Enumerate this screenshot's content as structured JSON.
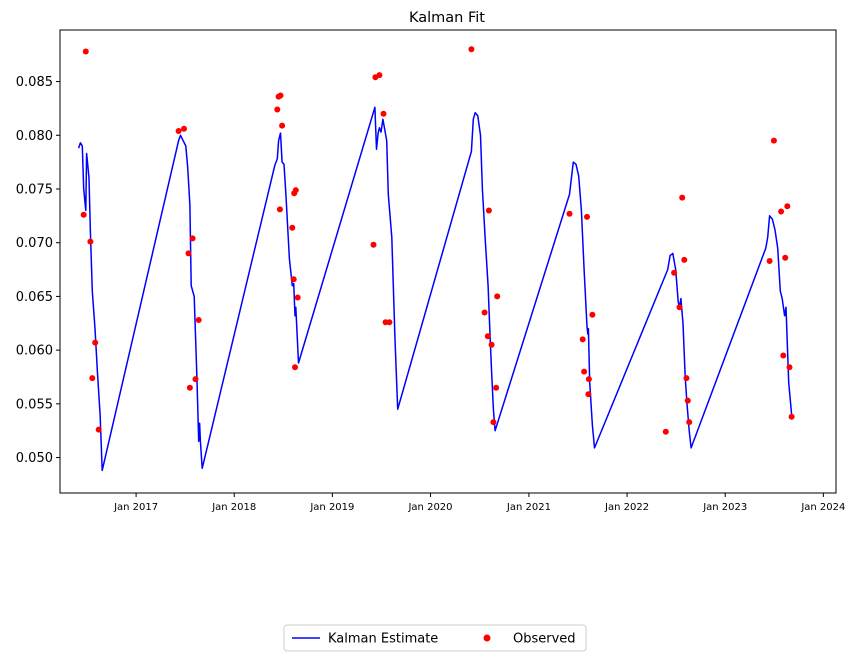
{
  "chart_data": {
    "type": "line",
    "title": "Kalman Fit",
    "xlabel": "",
    "ylabel": "",
    "xlim": [
      "2016-03-24",
      "2024-02-17"
    ],
    "ylim": [
      0.0467,
      0.0898
    ],
    "grid": false,
    "legend_position": "bottom-center",
    "colors": {
      "estimate": "#0000ff",
      "observed": "#ff0000"
    },
    "x_ticks": [
      "Jan 2017",
      "Jan 2018",
      "Jan 2019",
      "Jan 2020",
      "Jan 2021",
      "Jan 2022",
      "Jan 2023",
      "Jan 2024"
    ],
    "x_tick_dates": [
      "2017-01-01",
      "2018-01-01",
      "2019-01-01",
      "2020-01-01",
      "2021-01-01",
      "2022-01-01",
      "2023-01-01",
      "2024-01-01"
    ],
    "y_ticks": [
      "0.050",
      "0.055",
      "0.060",
      "0.065",
      "0.070",
      "0.075",
      "0.080",
      "0.085"
    ],
    "y_tick_values": [
      0.05,
      0.055,
      0.06,
      0.065,
      0.07,
      0.075,
      0.08,
      0.085
    ],
    "series": [
      {
        "name": "Kalman Estimate",
        "kind": "line",
        "points": [
          [
            "2016-06-01",
            0.0788
          ],
          [
            "2016-06-08",
            0.0793
          ],
          [
            "2016-06-15",
            0.079
          ],
          [
            "2016-06-20",
            0.075
          ],
          [
            "2016-06-28",
            0.073
          ],
          [
            "2016-07-01",
            0.0783
          ],
          [
            "2016-07-05",
            0.0773
          ],
          [
            "2016-07-10",
            0.076
          ],
          [
            "2016-07-15",
            0.071
          ],
          [
            "2016-07-22",
            0.0655
          ],
          [
            "2016-08-01",
            0.062
          ],
          [
            "2016-08-10",
            0.058
          ],
          [
            "2016-08-20",
            0.054
          ],
          [
            "2016-08-28",
            0.0488
          ],
          [
            "2017-06-08",
            0.0795
          ],
          [
            "2017-06-15",
            0.08
          ],
          [
            "2017-06-25",
            0.0795
          ],
          [
            "2017-07-05",
            0.079
          ],
          [
            "2017-07-12",
            0.077
          ],
          [
            "2017-07-20",
            0.0735
          ],
          [
            "2017-07-25",
            0.066
          ],
          [
            "2017-08-05",
            0.065
          ],
          [
            "2017-08-15",
            0.0575
          ],
          [
            "2017-08-22",
            0.0515
          ],
          [
            "2017-08-25",
            0.0532
          ],
          [
            "2017-08-28",
            0.0515
          ],
          [
            "2017-09-04",
            0.049
          ],
          [
            "2018-06-01",
            0.0772
          ],
          [
            "2018-06-10",
            0.0778
          ],
          [
            "2018-06-15",
            0.0795
          ],
          [
            "2018-06-22",
            0.0802
          ],
          [
            "2018-06-28",
            0.0775
          ],
          [
            "2018-07-05",
            0.0773
          ],
          [
            "2018-07-12",
            0.0745
          ],
          [
            "2018-07-25",
            0.0685
          ],
          [
            "2018-08-05",
            0.066
          ],
          [
            "2018-08-10",
            0.0662
          ],
          [
            "2018-08-15",
            0.0632
          ],
          [
            "2018-08-18",
            0.064
          ],
          [
            "2018-08-28",
            0.0588
          ],
          [
            "2019-06-08",
            0.0826
          ],
          [
            "2019-06-14",
            0.0787
          ],
          [
            "2019-06-20",
            0.0802
          ],
          [
            "2019-06-25",
            0.0807
          ],
          [
            "2019-07-01",
            0.0803
          ],
          [
            "2019-07-08",
            0.0815
          ],
          [
            "2019-07-15",
            0.0805
          ],
          [
            "2019-07-22",
            0.0795
          ],
          [
            "2019-07-28",
            0.0745
          ],
          [
            "2019-08-10",
            0.0705
          ],
          [
            "2019-08-22",
            0.061
          ],
          [
            "2019-09-01",
            0.0545
          ],
          [
            "2020-06-01",
            0.0785
          ],
          [
            "2020-06-08",
            0.0815
          ],
          [
            "2020-06-15",
            0.0821
          ],
          [
            "2020-06-25",
            0.0818
          ],
          [
            "2020-07-05",
            0.08
          ],
          [
            "2020-07-12",
            0.075
          ],
          [
            "2020-07-22",
            0.0705
          ],
          [
            "2020-08-02",
            0.066
          ],
          [
            "2020-08-10",
            0.061
          ],
          [
            "2020-08-15",
            0.058
          ],
          [
            "2020-08-22",
            0.0545
          ],
          [
            "2020-08-28",
            0.0525
          ],
          [
            "2021-06-01",
            0.0745
          ],
          [
            "2021-06-15",
            0.0775
          ],
          [
            "2021-06-25",
            0.0773
          ],
          [
            "2021-07-05",
            0.0762
          ],
          [
            "2021-07-15",
            0.073
          ],
          [
            "2021-07-25",
            0.0675
          ],
          [
            "2021-08-05",
            0.0622
          ],
          [
            "2021-08-08",
            0.0615
          ],
          [
            "2021-08-10",
            0.062
          ],
          [
            "2021-08-15",
            0.057
          ],
          [
            "2021-08-25",
            0.053
          ],
          [
            "2021-09-02",
            0.0509
          ],
          [
            "2022-06-01",
            0.0675
          ],
          [
            "2022-06-10",
            0.0688
          ],
          [
            "2022-06-20",
            0.069
          ],
          [
            "2022-07-01",
            0.0675
          ],
          [
            "2022-07-10",
            0.0645
          ],
          [
            "2022-07-15",
            0.064
          ],
          [
            "2022-07-20",
            0.0648
          ],
          [
            "2022-07-28",
            0.0625
          ],
          [
            "2022-08-05",
            0.0575
          ],
          [
            "2022-08-12",
            0.055
          ],
          [
            "2022-08-20",
            0.0525
          ],
          [
            "2022-08-27",
            0.0509
          ],
          [
            "2023-06-01",
            0.0695
          ],
          [
            "2023-06-08",
            0.0705
          ],
          [
            "2023-06-15",
            0.0725
          ],
          [
            "2023-06-25",
            0.0722
          ],
          [
            "2023-07-05",
            0.0712
          ],
          [
            "2023-07-15",
            0.0695
          ],
          [
            "2023-07-25",
            0.0655
          ],
          [
            "2023-08-01",
            0.0648
          ],
          [
            "2023-08-10",
            0.0632
          ],
          [
            "2023-08-15",
            0.064
          ],
          [
            "2023-08-25",
            0.057
          ],
          [
            "2023-09-05",
            0.054
          ]
        ]
      },
      {
        "name": "Observed",
        "kind": "scatter",
        "points": [
          [
            "2016-06-20",
            0.0726
          ],
          [
            "2016-06-28",
            0.0878
          ],
          [
            "2016-07-15",
            0.0701
          ],
          [
            "2016-07-22",
            0.0574
          ],
          [
            "2016-08-02",
            0.0607
          ],
          [
            "2016-08-15",
            0.0526
          ],
          [
            "2017-06-08",
            0.0804
          ],
          [
            "2017-06-28",
            0.0806
          ],
          [
            "2017-07-15",
            0.069
          ],
          [
            "2017-07-20",
            0.0565
          ],
          [
            "2017-07-30",
            0.0704
          ],
          [
            "2017-08-10",
            0.0573
          ],
          [
            "2017-08-22",
            0.0628
          ],
          [
            "2018-06-10",
            0.0824
          ],
          [
            "2018-06-15",
            0.0836
          ],
          [
            "2018-06-20",
            0.0731
          ],
          [
            "2018-06-22",
            0.0837
          ],
          [
            "2018-06-28",
            0.0809
          ],
          [
            "2018-08-05",
            0.0714
          ],
          [
            "2018-08-10",
            0.0666
          ],
          [
            "2018-08-12",
            0.0746
          ],
          [
            "2018-08-15",
            0.0584
          ],
          [
            "2018-08-18",
            0.0749
          ],
          [
            "2018-08-25",
            0.0649
          ],
          [
            "2019-06-03",
            0.0698
          ],
          [
            "2019-06-10",
            0.0854
          ],
          [
            "2019-06-25",
            0.0856
          ],
          [
            "2019-07-10",
            0.082
          ],
          [
            "2019-07-18",
            0.0626
          ],
          [
            "2019-08-01",
            0.0626
          ],
          [
            "2020-06-01",
            0.088
          ],
          [
            "2020-07-20",
            0.0635
          ],
          [
            "2020-08-01",
            0.0613
          ],
          [
            "2020-08-05",
            0.073
          ],
          [
            "2020-08-15",
            0.0605
          ],
          [
            "2020-08-22",
            0.0533
          ],
          [
            "2020-09-01",
            0.0565
          ],
          [
            "2020-09-05",
            0.065
          ],
          [
            "2021-06-01",
            0.0727
          ],
          [
            "2021-07-20",
            0.061
          ],
          [
            "2021-07-25",
            0.058
          ],
          [
            "2021-08-05",
            0.0724
          ],
          [
            "2021-08-10",
            0.0559
          ],
          [
            "2021-08-12",
            0.0573
          ],
          [
            "2021-08-25",
            0.0633
          ],
          [
            "2022-05-25",
            0.0524
          ],
          [
            "2022-06-25",
            0.0672
          ],
          [
            "2022-07-15",
            0.064
          ],
          [
            "2022-07-25",
            0.0742
          ],
          [
            "2022-08-02",
            0.0684
          ],
          [
            "2022-08-10",
            0.0574
          ],
          [
            "2022-08-15",
            0.0553
          ],
          [
            "2022-08-20",
            0.0533
          ],
          [
            "2023-06-15",
            0.0683
          ],
          [
            "2023-07-01",
            0.0795
          ],
          [
            "2023-07-28",
            0.0729
          ],
          [
            "2023-08-05",
            0.0595
          ],
          [
            "2023-08-12",
            0.0686
          ],
          [
            "2023-08-20",
            0.0734
          ],
          [
            "2023-08-28",
            0.0584
          ],
          [
            "2023-09-05",
            0.0538
          ]
        ]
      }
    ]
  }
}
